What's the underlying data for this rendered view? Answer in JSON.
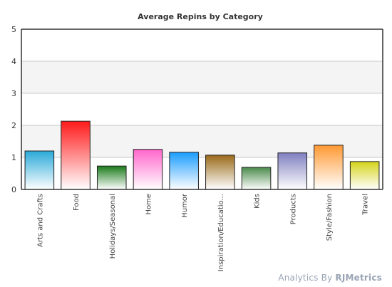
{
  "chart_data": {
    "type": "bar",
    "title": "Average Repins by Category",
    "categories": [
      "Arts and Crafts",
      "Food",
      "Holidays/Seasonal",
      "Home",
      "Humor",
      "Inspiration/Educatio...",
      "Kids",
      "Products",
      "Style/Fashion",
      "Travel"
    ],
    "values": [
      1.2,
      2.13,
      0.73,
      1.25,
      1.16,
      1.07,
      0.69,
      1.14,
      1.38,
      0.87
    ],
    "colors": [
      "#2aa9d8",
      "#ff1a1a",
      "#1a7a1a",
      "#ff66cc",
      "#1a9cff",
      "#9a6a1a",
      "#4a8a4a",
      "#8080c0",
      "#ff9933",
      "#d4d41a"
    ],
    "xlabel": "",
    "ylabel": "",
    "ylim": [
      0,
      5
    ],
    "yticks": [
      0,
      1,
      2,
      3,
      4,
      5
    ],
    "grid": true,
    "legend": "none"
  },
  "footer": {
    "prefix": "Analytics By ",
    "brand": "RJMetrics"
  }
}
